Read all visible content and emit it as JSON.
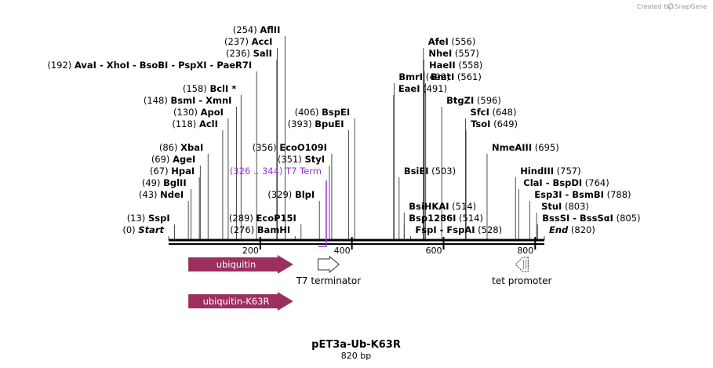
{
  "credit": {
    "text": "Created by",
    "brand": "SnapGene"
  },
  "plasmid": {
    "name": "pET3a-Ub-K63R",
    "length": "820 bp"
  },
  "axis": {
    "min": 0,
    "max": 820,
    "ticks": [
      200,
      400,
      600,
      800
    ]
  },
  "sites": [
    {
      "name": "AflII",
      "pos": 254,
      "row": 0
    },
    {
      "name": "AccI",
      "pos": 237,
      "row": 1
    },
    {
      "name": "SalI",
      "pos": 236,
      "row": 2
    },
    {
      "name": "AvaI - XhoI - BsoBI - PspXI - PaeR7I",
      "pos": 192,
      "row": 3
    },
    {
      "name": "BclI *",
      "pos": 158,
      "row": 5
    },
    {
      "name": "BsmI - XmnI",
      "pos": 148,
      "row": 6
    },
    {
      "name": "ApoI",
      "pos": 130,
      "row": 7
    },
    {
      "name": "AclI",
      "pos": 118,
      "row": 8
    },
    {
      "name": "XbaI",
      "pos": 86,
      "row": 10
    },
    {
      "name": "AgeI",
      "pos": 69,
      "row": 11
    },
    {
      "name": "HpaI",
      "pos": 67,
      "row": 12
    },
    {
      "name": "BglII",
      "pos": 49,
      "row": 13
    },
    {
      "name": "NdeI",
      "pos": 43,
      "row": 14
    },
    {
      "name": "SspI",
      "pos": 13,
      "row": 16
    },
    {
      "name": "Start",
      "pos": 0,
      "row": 17,
      "italic": true
    },
    {
      "name": "BspEI",
      "pos": 406,
      "row": 7
    },
    {
      "name": "BpuEI",
      "pos": 393,
      "row": 8
    },
    {
      "name": "EcoO109I",
      "pos": 356,
      "row": 10
    },
    {
      "name": "StyI",
      "pos": 351,
      "row": 11
    },
    {
      "name": "BlpI",
      "pos": 329,
      "row": 14
    },
    {
      "name": "EcoP15I",
      "pos": 289,
      "row": 16
    },
    {
      "name": "BamHI",
      "pos": 276,
      "row": 17
    },
    {
      "name": "BmrI",
      "pos": 492,
      "row": 4
    },
    {
      "name": "EaeI",
      "pos": 491,
      "row": 5
    },
    {
      "name": "AfeI",
      "pos": 556,
      "row": 1
    },
    {
      "name": "NheI",
      "pos": 557,
      "row": 2
    },
    {
      "name": "HaeII",
      "pos": 558,
      "row": 3
    },
    {
      "name": "BmtI",
      "pos": 561,
      "row": 4
    },
    {
      "name": "BtgZI",
      "pos": 596,
      "row": 6
    },
    {
      "name": "SfcI",
      "pos": 648,
      "row": 7
    },
    {
      "name": "TsoI",
      "pos": 649,
      "row": 8
    },
    {
      "name": "NmeAIII",
      "pos": 695,
      "row": 10
    },
    {
      "name": "BsiEI",
      "pos": 503,
      "row": 12
    },
    {
      "name": "HindIII",
      "pos": 757,
      "row": 12
    },
    {
      "name": "ClaI - BspDI",
      "pos": 764,
      "row": 13
    },
    {
      "name": "Esp3I - BsmBI",
      "pos": 788,
      "row": 14
    },
    {
      "name": "BsiHKAI",
      "pos": 514,
      "row": 15
    },
    {
      "name": "StuI",
      "pos": 803,
      "row": 15
    },
    {
      "name": "Bsp1286I",
      "pos": 514,
      "row": 16
    },
    {
      "name": "BssSI - BssSαI",
      "pos": 805,
      "row": 16
    },
    {
      "name": "FspI - FspAI",
      "pos": 528,
      "row": 17
    },
    {
      "name": "End",
      "pos": 820,
      "row": 17,
      "italic": true
    }
  ],
  "terminator_site": {
    "range": "(326 .. 344)",
    "name": "T7 Term",
    "start": 326,
    "end": 344,
    "color": "#9b30d9"
  },
  "features": [
    {
      "name": "ubiquitin",
      "start": 43,
      "end": 272,
      "type": "cds",
      "color": "#9c2f5e"
    },
    {
      "name": "ubiquitin-K63R",
      "start": 43,
      "end": 272,
      "type": "cds",
      "color": "#9c2f5e"
    },
    {
      "name": "T7 terminator",
      "start": 326,
      "end": 372,
      "type": "terminator"
    },
    {
      "name": "tet promoter",
      "start": 752,
      "end": 781,
      "type": "promoter"
    }
  ]
}
